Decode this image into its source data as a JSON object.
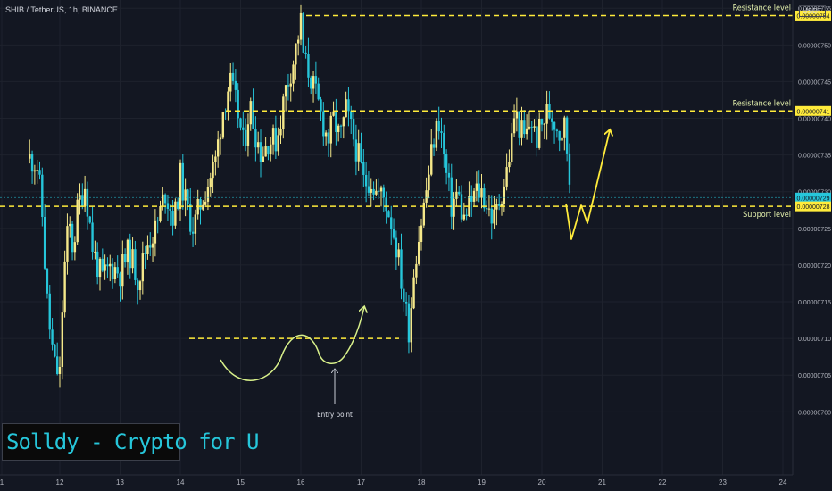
{
  "symbol_info": "SHIB / TetherUS, 1h, BINANCE",
  "currency": "USDT",
  "watermark": "Solldy - Crypto for U",
  "colors": {
    "background": "#131722",
    "up_candle": "#f5e88a",
    "down_candle": "#26c6da",
    "annotation": "#ffeb3b",
    "sketch": "#d8f08a",
    "text": "#d1d4dc"
  },
  "chart_data": {
    "type": "candlestick",
    "title": "SHIB / TetherUS, 1h, BINANCE",
    "x_ticks": [
      "1",
      "12",
      "13",
      "14",
      "15",
      "16",
      "17",
      "18",
      "19",
      "20",
      "21",
      "22",
      "23",
      "24"
    ],
    "y_ticks": [
      "0.00000755",
      "0.00000750",
      "0.00000745",
      "0.00000740",
      "0.00000735",
      "0.00000730",
      "0.00000725",
      "0.00000720",
      "0.00000715",
      "0.00000710",
      "0.00000705",
      "0.00000700"
    ],
    "ylim": [
      6.985e-06,
      7.56e-06
    ],
    "price_labels": [
      {
        "label": "0.00000754",
        "value": 7.54e-06,
        "kind": "level"
      },
      {
        "label": "0.00000741",
        "value": 7.41e-06,
        "kind": "level"
      },
      {
        "label": "0.00000729",
        "value": 7.292e-06,
        "kind": "current"
      },
      {
        "label": "0.00000728",
        "value": 7.28e-06,
        "kind": "level"
      }
    ],
    "levels": [
      {
        "label": "Resistance level",
        "value": 7.54e-06
      },
      {
        "label": "Resistance level",
        "value": 7.41e-06
      },
      {
        "label": "Support level",
        "value": 7.28e-06
      }
    ],
    "entry_annotation": {
      "label": "Entry point",
      "value": 7.1e-06
    },
    "close_path": [
      [
        11.5,
        7.345e-06
      ],
      [
        11.62,
        7.34e-06
      ],
      [
        11.7,
        7.28e-06
      ],
      [
        11.78,
        7.16e-06
      ],
      [
        11.85,
        7.1e-06
      ],
      [
        11.92,
        7.06e-06
      ],
      [
        12.0,
        7.05e-06
      ],
      [
        12.06,
        7.18e-06
      ],
      [
        12.15,
        7.26e-06
      ],
      [
        12.22,
        7.22e-06
      ],
      [
        12.3,
        7.28e-06
      ],
      [
        12.42,
        7.31e-06
      ],
      [
        12.55,
        7.22e-06
      ],
      [
        12.7,
        7.18e-06
      ],
      [
        12.85,
        7.2e-06
      ],
      [
        13.0,
        7.19e-06
      ],
      [
        13.15,
        7.22e-06
      ],
      [
        13.3,
        7.18e-06
      ],
      [
        13.45,
        7.23e-06
      ],
      [
        13.6,
        7.25e-06
      ],
      [
        13.75,
        7.3e-06
      ],
      [
        13.9,
        7.26e-06
      ],
      [
        14.0,
        7.32e-06
      ],
      [
        14.1,
        7.28e-06
      ],
      [
        14.22,
        7.25e-06
      ],
      [
        14.32,
        7.28e-06
      ],
      [
        14.45,
        7.31e-06
      ],
      [
        14.58,
        7.34e-06
      ],
      [
        14.7,
        7.41e-06
      ],
      [
        14.82,
        7.45e-06
      ],
      [
        14.95,
        7.41e-06
      ],
      [
        15.05,
        7.36e-06
      ],
      [
        15.15,
        7.42e-06
      ],
      [
        15.25,
        7.38e-06
      ],
      [
        15.35,
        7.35e-06
      ],
      [
        15.45,
        7.37e-06
      ],
      [
        15.6,
        7.37e-06
      ],
      [
        15.75,
        7.44e-06
      ],
      [
        15.88,
        7.48e-06
      ],
      [
        15.95,
        7.51e-06
      ],
      [
        16.0,
        7.53e-06
      ],
      [
        16.05,
        7.48e-06
      ],
      [
        16.15,
        7.46e-06
      ],
      [
        16.25,
        7.43e-06
      ],
      [
        16.35,
        7.4e-06
      ],
      [
        16.45,
        7.37e-06
      ],
      [
        16.55,
        7.4e-06
      ],
      [
        16.65,
        7.37e-06
      ],
      [
        16.75,
        7.41e-06
      ],
      [
        16.85,
        7.38e-06
      ],
      [
        16.95,
        7.35e-06
      ],
      [
        17.05,
        7.31e-06
      ],
      [
        17.15,
        7.32e-06
      ],
      [
        17.25,
        7.3e-06
      ],
      [
        17.4,
        7.29e-06
      ],
      [
        17.5,
        7.26e-06
      ],
      [
        17.6,
        7.22e-06
      ],
      [
        17.7,
        7.16e-06
      ],
      [
        17.8,
        7.11e-06
      ],
      [
        17.88,
        7.2e-06
      ],
      [
        18.0,
        7.26e-06
      ],
      [
        18.1,
        7.31e-06
      ],
      [
        18.2,
        7.37e-06
      ],
      [
        18.3,
        7.4e-06
      ],
      [
        18.4,
        7.33e-06
      ],
      [
        18.5,
        7.28e-06
      ],
      [
        18.6,
        7.3e-06
      ],
      [
        18.7,
        7.26e-06
      ],
      [
        18.8,
        7.28e-06
      ],
      [
        18.9,
        7.3e-06
      ],
      [
        19.0,
        7.3e-06
      ],
      [
        19.1,
        7.28e-06
      ],
      [
        19.2,
        7.26e-06
      ],
      [
        19.3,
        7.29e-06
      ],
      [
        19.4,
        7.32e-06
      ],
      [
        19.5,
        7.37e-06
      ],
      [
        19.55,
        7.41e-06
      ],
      [
        19.62,
        7.39e-06
      ],
      [
        19.72,
        7.37e-06
      ],
      [
        19.82,
        7.4e-06
      ],
      [
        19.9,
        7.37e-06
      ],
      [
        20.0,
        7.39e-06
      ],
      [
        20.1,
        7.41e-06
      ],
      [
        20.2,
        7.4e-06
      ],
      [
        20.3,
        7.38e-06
      ],
      [
        20.38,
        7.39e-06
      ],
      [
        20.45,
        7.33e-06
      ],
      [
        20.48,
        7.29e-06
      ]
    ]
  }
}
